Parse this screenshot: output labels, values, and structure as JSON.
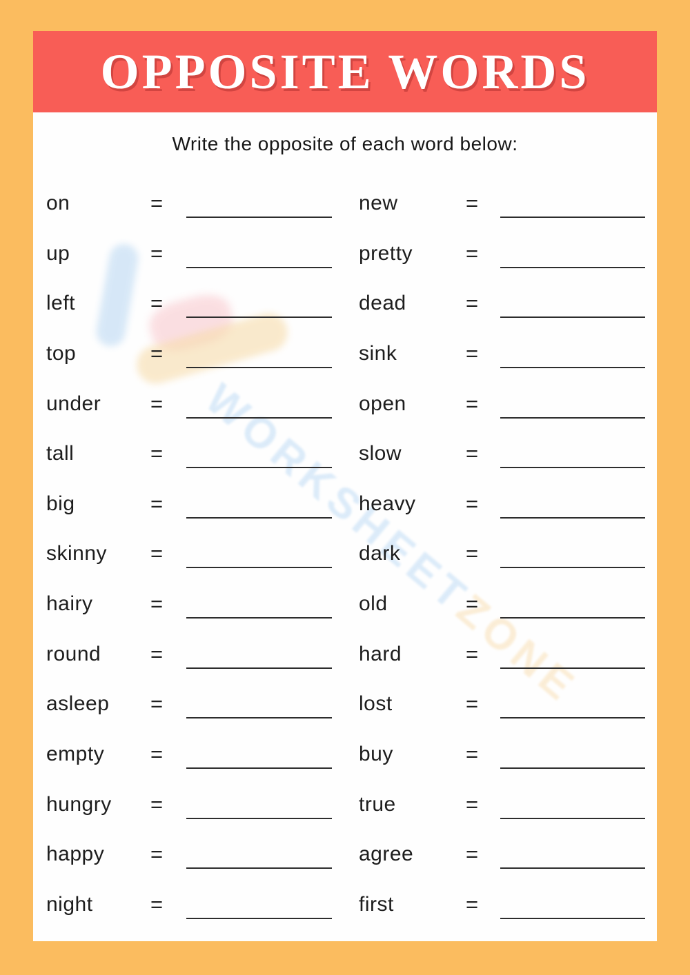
{
  "page": {
    "title": "OPPOSITE WORDS",
    "instruction": "Write the opposite of each word below:"
  },
  "symbols": {
    "equals": "="
  },
  "watermark": {
    "text_primary": "WORKSHEET",
    "text_secondary": "ZONE"
  },
  "colors": {
    "border_orange": "#FBBC5F",
    "banner_red": "#F85D56",
    "title_text": "#FFFFFF",
    "body_text": "#1D1D1D",
    "blank_line": "#2D2D2D",
    "watermark_blue": "#B9D8F4",
    "watermark_orange": "#F8DCAE",
    "watermark_pink": "#F8C0C6"
  },
  "columns": {
    "left": {
      "words": [
        "on",
        "up",
        "left",
        "top",
        "under",
        "tall",
        "big",
        "skinny",
        "hairy",
        "round",
        "asleep",
        "empty",
        "hungry",
        "happy",
        "night"
      ]
    },
    "right": {
      "words": [
        "new",
        "pretty",
        "dead",
        "sink",
        "open",
        "slow",
        "heavy",
        "dark",
        "old",
        "hard",
        "lost",
        "buy",
        "true",
        "agree",
        "first"
      ]
    }
  }
}
